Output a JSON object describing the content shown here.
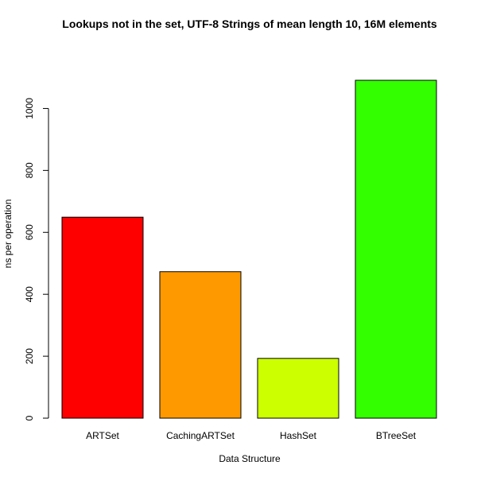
{
  "chart_data": {
    "type": "bar",
    "title": "Lookups not in the set, UTF-8 Strings of mean length 10, 16M elements",
    "xlabel": "Data Structure",
    "ylabel": "ns per operation",
    "categories": [
      "ARTSet",
      "CachingARTSet",
      "HashSet",
      "BTreeSet"
    ],
    "values": [
      649,
      473,
      193,
      1091
    ],
    "colors": [
      "#FF0000",
      "#FF9900",
      "#CCFF00",
      "#33FF00"
    ],
    "y_ticks": [
      0,
      200,
      400,
      600,
      800,
      1000
    ],
    "ylim": [
      0,
      1091
    ],
    "grid": false,
    "legend": "none"
  }
}
